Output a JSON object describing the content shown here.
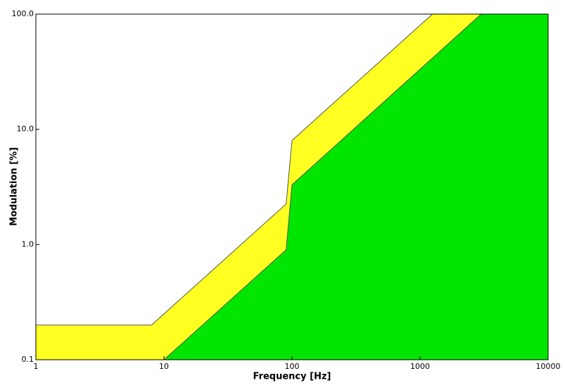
{
  "chart_data": {
    "type": "area",
    "xlabel": "Frequency [Hz]",
    "ylabel": "Modulation [%]",
    "xscale": "log",
    "yscale": "log",
    "xlim": [
      1,
      10000
    ],
    "ylim": [
      0.1,
      100
    ],
    "xticks": [
      1,
      10,
      100,
      1000,
      10000
    ],
    "yticks": [
      0.1,
      {
        "value": 1,
        "label": "1.0"
      },
      {
        "value": 10,
        "label": "10.0"
      },
      {
        "value": 100,
        "label": "100.0"
      }
    ],
    "series": [
      {
        "color": "#ffff22",
        "x": [
          1,
          8,
          90,
          100,
          1250,
          10000
        ],
        "values": [
          0.2,
          0.2,
          2.25,
          8,
          100,
          100
        ]
      },
      {
        "color": "#00e600",
        "x": [
          10,
          90,
          100,
          3000,
          10000
        ],
        "values": [
          0.1,
          0.9,
          3.3,
          100,
          100
        ]
      }
    ]
  }
}
